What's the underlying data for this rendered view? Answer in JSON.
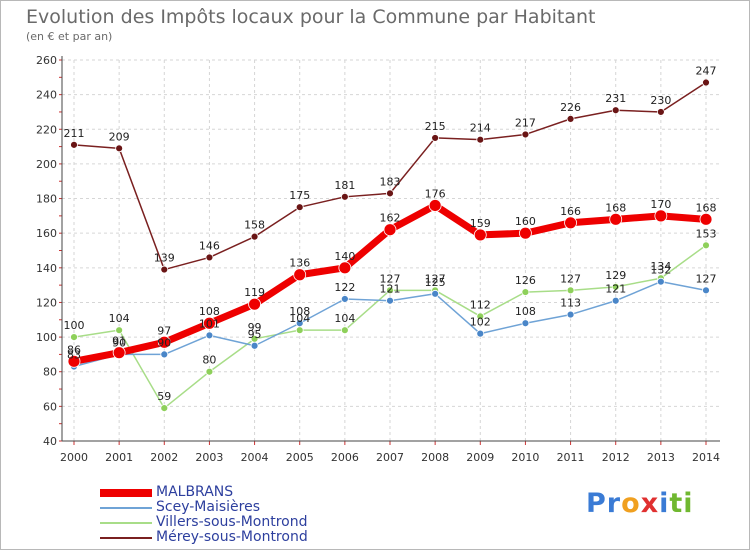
{
  "title": "Evolution des Impôts locaux pour la Commune par Habitant",
  "subtitle": "(en € et par an)",
  "brand": {
    "letters": [
      {
        "ch": "P",
        "color": "#3a7bd5"
      },
      {
        "ch": "r",
        "color": "#3a7bd5"
      },
      {
        "ch": "o",
        "color": "#f0a020"
      },
      {
        "ch": "x",
        "color": "#e03030"
      },
      {
        "ch": "i",
        "color": "#3a7bd5"
      },
      {
        "ch": "t",
        "color": "#70b830"
      },
      {
        "ch": "i",
        "color": "#70b830"
      }
    ]
  },
  "chart_data": {
    "type": "line",
    "x": [
      2000,
      2001,
      2002,
      2003,
      2004,
      2005,
      2006,
      2007,
      2008,
      2009,
      2010,
      2011,
      2012,
      2013,
      2014
    ],
    "ylim": [
      40,
      260
    ],
    "yticks": [
      40,
      60,
      80,
      100,
      120,
      140,
      160,
      180,
      200,
      220,
      240,
      260
    ],
    "grid": true,
    "legend_position": "bottom-left",
    "series": [
      {
        "name": "MALBRANS",
        "color": "#ee0000",
        "point_color": "#ee0000",
        "width": 7,
        "radius": 6,
        "values": [
          86,
          91,
          97,
          108,
          119,
          136,
          140,
          162,
          176,
          159,
          160,
          166,
          168,
          170,
          168
        ]
      },
      {
        "name": "Scey-Maisières",
        "color": "#6fa3d6",
        "point_color": "#4a86c8",
        "width": 1.5,
        "radius": 3.5,
        "values": [
          83,
          90,
          90,
          101,
          95,
          108,
          122,
          121,
          125,
          102,
          108,
          113,
          121,
          132,
          127
        ]
      },
      {
        "name": "Villers-sous-Montrond",
        "color": "#a8dd88",
        "point_color": "#8ed05a",
        "width": 1.5,
        "radius": 3.5,
        "values": [
          100,
          104,
          59,
          80,
          99,
          104,
          104,
          127,
          127,
          112,
          126,
          127,
          129,
          134,
          153
        ]
      },
      {
        "name": "Mérey-sous-Montrond",
        "color": "#7a2020",
        "point_color": "#6a1515",
        "width": 1.5,
        "radius": 3.5,
        "values": [
          211,
          209,
          139,
          146,
          158,
          175,
          181,
          183,
          215,
          214,
          217,
          226,
          231,
          230,
          247
        ]
      }
    ]
  }
}
